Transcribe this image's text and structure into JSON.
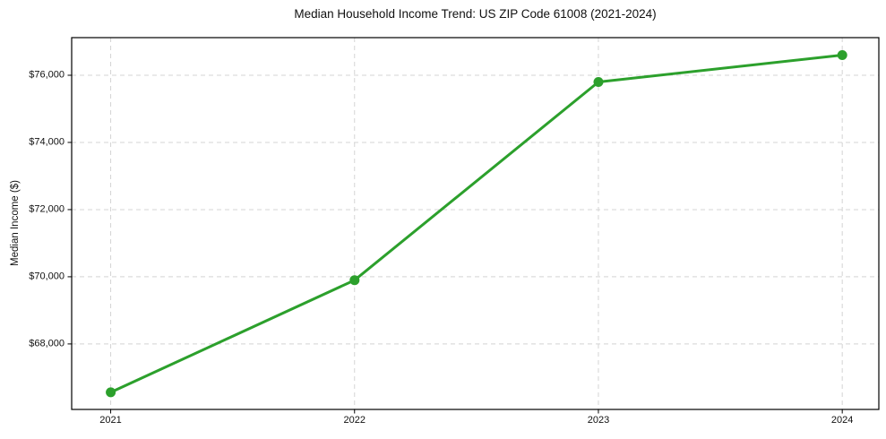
{
  "figure": {
    "title": "Median Household Income Trend: US ZIP Code 61008 (2021-2024)"
  },
  "chart_data": {
    "type": "line",
    "title": "Median Household Income Trend: US ZIP Code 61008 (2021-2024)",
    "xlabel": "",
    "ylabel": "Median Income ($)",
    "x": [
      2021,
      2022,
      2023,
      2024
    ],
    "values": [
      66560,
      69900,
      75800,
      76600
    ],
    "series_name": "Median Household Income",
    "xlim": [
      2020.84,
      2024.15
    ],
    "ylim": [
      66050,
      77120
    ],
    "xticks": [
      2021,
      2022,
      2023,
      2024
    ],
    "xtick_labels": [
      "2021",
      "2022",
      "2023",
      "2024"
    ],
    "yticks": [
      68000,
      70000,
      72000,
      74000,
      76000
    ],
    "ytick_labels": [
      "$68,000",
      "$70,000",
      "$72,000",
      "$74,000",
      "$76,000"
    ],
    "grid": true,
    "grid_style": "dashed",
    "legend": null,
    "colors": {
      "line": "#2ca02c",
      "marker": "#2ca02c",
      "grid": "#d4d4d4",
      "spine": "#000000",
      "text": "#111111",
      "background": "#ffffff"
    },
    "line_width": 3,
    "marker": "o",
    "marker_diameter": 11
  }
}
